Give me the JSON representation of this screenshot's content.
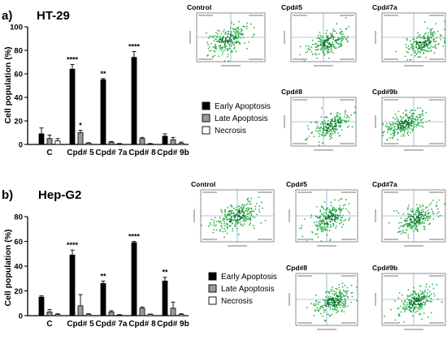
{
  "chart_data": [
    {
      "type": "bar",
      "panel_label": "a)",
      "title": "HT-29",
      "xlabel": "",
      "ylabel": "Cell population (%)",
      "ylim": [
        0,
        100
      ],
      "yticks": [
        0,
        20,
        40,
        60,
        80,
        100
      ],
      "categories": [
        "C",
        "Cpd# 5",
        "Cpd# 7a",
        "Cpd# 8",
        "Cpd# 9b"
      ],
      "series": [
        {
          "name": "Early Apoptosis",
          "color": "#000000",
          "values": [
            9,
            64,
            55,
            74,
            7
          ],
          "errors": [
            5,
            4,
            1,
            5,
            2
          ]
        },
        {
          "name": "Late Apoptosis",
          "color": "#999999",
          "values": [
            5,
            10,
            2,
            5,
            4
          ],
          "errors": [
            3,
            2,
            0.5,
            1,
            2
          ]
        },
        {
          "name": "Necrosis",
          "color": "#ffffff",
          "values": [
            3,
            1,
            0.5,
            0.5,
            1
          ],
          "errors": [
            2,
            0.5,
            0.3,
            0.3,
            1
          ]
        }
      ],
      "significance": [
        {
          "category": "Cpd# 5",
          "series": 0,
          "text": "****"
        },
        {
          "category": "Cpd# 5",
          "series": 1,
          "text": "*"
        },
        {
          "category": "Cpd# 7a",
          "series": 0,
          "text": "**"
        },
        {
          "category": "Cpd# 8",
          "series": 0,
          "text": "****"
        }
      ],
      "legend_position": "right"
    },
    {
      "type": "bar",
      "panel_label": "b)",
      "title": "Hep-G2",
      "xlabel": "",
      "ylabel": "Cell population (%)",
      "ylim": [
        0,
        80
      ],
      "yticks": [
        0,
        20,
        40,
        60,
        80
      ],
      "categories": [
        "C",
        "Cpd# 5",
        "Cpd# 7a",
        "Cpd# 8",
        "Cpd# 9b"
      ],
      "series": [
        {
          "name": "Early Apoptosis",
          "color": "#000000",
          "values": [
            15,
            49,
            26,
            59,
            28
          ],
          "errors": [
            1,
            4,
            2,
            1,
            3
          ]
        },
        {
          "name": "Late Apoptosis",
          "color": "#999999",
          "values": [
            3,
            8,
            3,
            6,
            6
          ],
          "errors": [
            2,
            9,
            1,
            1,
            5
          ]
        },
        {
          "name": "Necrosis",
          "color": "#ffffff",
          "values": [
            1,
            1,
            0.5,
            1,
            1
          ],
          "errors": [
            0.5,
            0.5,
            0.3,
            0.3,
            0.5
          ]
        }
      ],
      "significance": [
        {
          "category": "Cpd# 5",
          "series": 0,
          "text": "****"
        },
        {
          "category": "Cpd# 7a",
          "series": 0,
          "text": "**"
        },
        {
          "category": "Cpd# 8",
          "series": 0,
          "text": "****"
        },
        {
          "category": "Cpd# 9b",
          "series": 0,
          "text": "**"
        }
      ],
      "legend_position": "right"
    }
  ],
  "flow_panels": {
    "ht29": [
      "Control",
      "Cpd#5",
      "Cpd#7a",
      "Cpd#8",
      "Cpd#9b"
    ],
    "hepg2": [
      "Control",
      "Cpd#5",
      "Cpd#7a",
      "Cpd#8",
      "Cpd#9b"
    ]
  },
  "colors": {
    "scatter_green": "#2bb04a",
    "scatter_dark": "#0e7a2c",
    "gate_line": "#5a8fc8"
  }
}
